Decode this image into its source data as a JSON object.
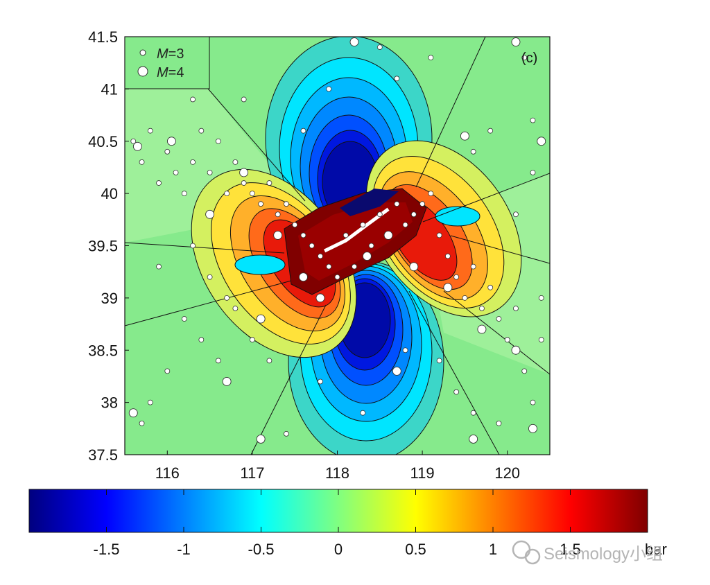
{
  "chart_data": {
    "type": "heatmap",
    "title": "",
    "panel_label": "(c)",
    "xlabel": "",
    "ylabel": "",
    "xlim": [
      115.5,
      120.5
    ],
    "ylim": [
      37.5,
      41.5
    ],
    "x_ticks": [
      "116",
      "117",
      "118",
      "119",
      "120"
    ],
    "y_ticks": [
      "41.5",
      "41",
      "40.5",
      "40",
      "39.5",
      "39",
      "38.5",
      "38",
      "37.5"
    ],
    "colorbar": {
      "range": [
        -2,
        2
      ],
      "ticks": [
        "-1.5",
        "-1",
        "-0.5",
        "0",
        "0.5",
        "1",
        "1.5"
      ],
      "unit_label": "bar",
      "colormap": "jet"
    },
    "legend": {
      "position": "top-left",
      "entries": [
        {
          "label": "M=3",
          "italic_symbol": "M",
          "rest": "=3",
          "marker": "small-circle"
        },
        {
          "label": "M=4",
          "italic_symbol": "M",
          "rest": "=4",
          "marker": "large-circle"
        }
      ]
    },
    "source_fault": {
      "description": "NE-trending rupture near 118.2E, 39.6N",
      "trace": [
        [
          117.85,
          39.45
        ],
        [
          118.1,
          39.55
        ],
        [
          118.35,
          39.7
        ],
        [
          118.6,
          39.85
        ]
      ]
    },
    "stress_field": {
      "lobes": [
        {
          "sign": "negative",
          "center": [
            118.15,
            40.3
          ],
          "peak": -2
        },
        {
          "sign": "negative",
          "center": [
            118.3,
            38.75
          ],
          "peak": -2
        },
        {
          "sign": "positive",
          "center": [
            117.15,
            39.4
          ],
          "peak": 2
        },
        {
          "sign": "positive",
          "center": [
            119.1,
            39.5
          ],
          "peak": 2
        }
      ]
    },
    "events_m3": [
      [
        115.6,
        40.5
      ],
      [
        115.7,
        40.3
      ],
      [
        115.8,
        40.6
      ],
      [
        115.9,
        40.1
      ],
      [
        116.0,
        40.4
      ],
      [
        116.1,
        40.2
      ],
      [
        116.2,
        40.0
      ],
      [
        116.3,
        40.3
      ],
      [
        116.4,
        40.6
      ],
      [
        116.5,
        40.2
      ],
      [
        116.6,
        40.5
      ],
      [
        116.7,
        40.0
      ],
      [
        116.8,
        40.3
      ],
      [
        116.9,
        40.1
      ],
      [
        117.0,
        40.0
      ],
      [
        117.1,
        39.9
      ],
      [
        117.2,
        40.1
      ],
      [
        117.3,
        39.8
      ],
      [
        117.4,
        39.9
      ],
      [
        117.5,
        39.7
      ],
      [
        117.6,
        39.6
      ],
      [
        117.7,
        39.5
      ],
      [
        117.8,
        39.4
      ],
      [
        117.9,
        39.3
      ],
      [
        118.0,
        39.2
      ],
      [
        118.1,
        39.6
      ],
      [
        118.2,
        39.3
      ],
      [
        118.3,
        39.7
      ],
      [
        118.4,
        39.5
      ],
      [
        118.5,
        39.8
      ],
      [
        118.6,
        39.6
      ],
      [
        118.7,
        39.9
      ],
      [
        118.8,
        39.7
      ],
      [
        118.9,
        39.8
      ],
      [
        119.0,
        39.9
      ],
      [
        119.1,
        40.0
      ],
      [
        119.2,
        39.6
      ],
      [
        119.3,
        39.4
      ],
      [
        119.4,
        39.2
      ],
      [
        119.5,
        39.0
      ],
      [
        119.6,
        39.3
      ],
      [
        119.7,
        38.9
      ],
      [
        119.8,
        39.1
      ],
      [
        119.9,
        38.8
      ],
      [
        120.0,
        38.6
      ],
      [
        120.1,
        38.9
      ],
      [
        120.2,
        38.3
      ],
      [
        120.3,
        38.0
      ],
      [
        116.2,
        38.8
      ],
      [
        116.4,
        38.6
      ],
      [
        116.6,
        38.4
      ],
      [
        116.8,
        38.9
      ],
      [
        117.0,
        38.6
      ],
      [
        116.0,
        38.3
      ],
      [
        115.8,
        38.0
      ],
      [
        115.7,
        37.8
      ],
      [
        116.5,
        39.2
      ],
      [
        116.3,
        39.5
      ],
      [
        115.9,
        39.3
      ],
      [
        116.7,
        39.0
      ],
      [
        117.2,
        38.4
      ],
      [
        118.8,
        38.5
      ],
      [
        119.2,
        38.4
      ],
      [
        119.4,
        38.1
      ],
      [
        119.6,
        37.9
      ],
      [
        119.9,
        37.8
      ],
      [
        118.5,
        41.4
      ],
      [
        118.7,
        41.1
      ],
      [
        119.1,
        41.3
      ],
      [
        119.6,
        40.4
      ],
      [
        120.2,
        41.3
      ],
      [
        120.3,
        40.2
      ],
      [
        117.9,
        41.0
      ],
      [
        117.6,
        40.6
      ],
      [
        116.9,
        40.9
      ],
      [
        116.3,
        40.9
      ],
      [
        118.3,
        37.9
      ],
      [
        117.8,
        38.2
      ],
      [
        117.4,
        37.7
      ],
      [
        120.4,
        38.6
      ],
      [
        120.4,
        39.0
      ],
      [
        120.1,
        39.8
      ],
      [
        119.8,
        40.6
      ],
      [
        120.3,
        40.7
      ]
    ],
    "events_m4": [
      [
        115.65,
        40.45
      ],
      [
        116.05,
        40.5
      ],
      [
        116.5,
        39.8
      ],
      [
        116.9,
        40.2
      ],
      [
        117.3,
        39.6
      ],
      [
        117.6,
        39.2
      ],
      [
        117.8,
        39.0
      ],
      [
        118.35,
        39.4
      ],
      [
        118.6,
        39.6
      ],
      [
        118.9,
        39.3
      ],
      [
        119.3,
        39.1
      ],
      [
        119.7,
        38.7
      ],
      [
        120.1,
        38.5
      ],
      [
        120.4,
        40.5
      ],
      [
        118.7,
        38.3
      ],
      [
        117.1,
        38.8
      ],
      [
        116.7,
        38.2
      ],
      [
        115.6,
        37.9
      ],
      [
        117.1,
        37.65
      ],
      [
        119.6,
        37.65
      ],
      [
        120.3,
        37.75
      ],
      [
        118.2,
        41.45
      ],
      [
        120.1,
        41.45
      ],
      [
        119.5,
        40.55
      ]
    ]
  }
}
